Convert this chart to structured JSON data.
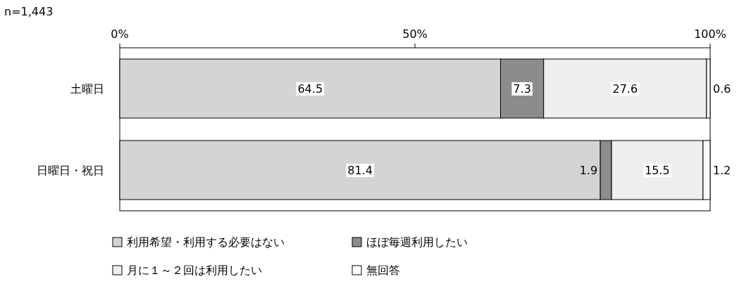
{
  "chart_data": {
    "type": "bar",
    "orientation": "horizontal",
    "stacked": true,
    "annotations": [
      "n=1,443"
    ],
    "categories": [
      "土曜日",
      "日曜日・祝日"
    ],
    "xlim": [
      0,
      100
    ],
    "xticks": [
      {
        "value": 0,
        "label": "0%"
      },
      {
        "value": 50,
        "label": "50%"
      },
      {
        "value": 100,
        "label": "100%"
      }
    ],
    "series": [
      {
        "name": "利用希望・利用する必要はない",
        "color": "#d4d4d4",
        "values": [
          64.5,
          81.4
        ]
      },
      {
        "name": "ほぼ毎週利用したい",
        "color": "#8c8c8c",
        "values": [
          7.3,
          1.9
        ]
      },
      {
        "name": "月に１～２回は利用したい",
        "color": "#eeeeee",
        "values": [
          27.6,
          15.5
        ]
      },
      {
        "name": "無回答",
        "color": "#ffffff",
        "values": [
          0.6,
          1.2
        ]
      }
    ],
    "data_labels": true,
    "legend": "bottom"
  }
}
